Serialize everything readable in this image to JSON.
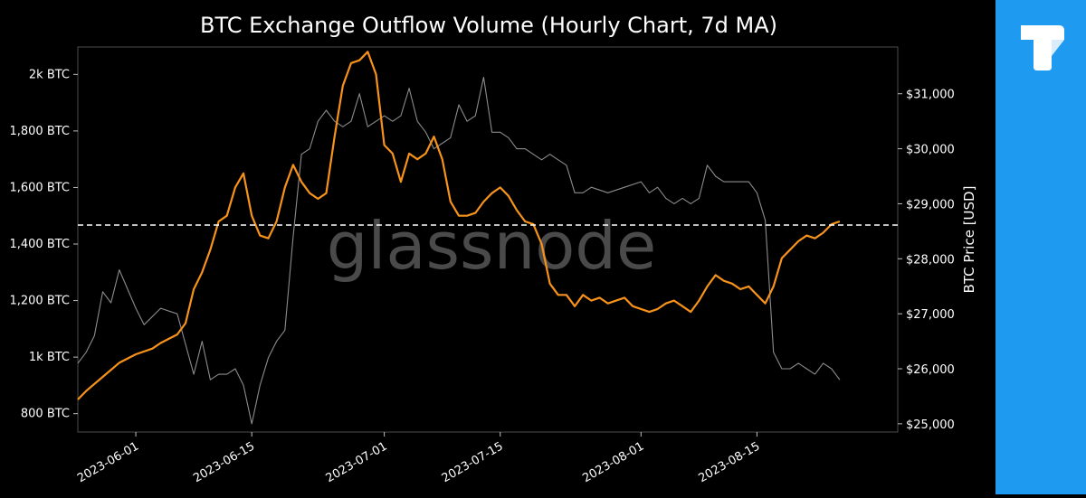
{
  "brand": {
    "logo_icon": "tradingview-t-icon",
    "panel_color": "#1e9bf0"
  },
  "watermark": "glassnode",
  "chart_data": {
    "type": "line",
    "title": "BTC Exchange Outflow Volume (Hourly Chart, 7d MA)",
    "xlabel": "",
    "ylabel_left": "",
    "ylabel_right": "BTC Price [USD]",
    "x_ticks": [
      "2023-06-01",
      "2023-06-15",
      "2023-07-01",
      "2023-07-15",
      "2023-08-01",
      "2023-08-15"
    ],
    "y_left_ticks": [
      {
        "value": 800,
        "label": "800 BTC"
      },
      {
        "value": 1000,
        "label": "1k BTC"
      },
      {
        "value": 1200,
        "label": "1,200 BTC"
      },
      {
        "value": 1400,
        "label": "1,400 BTC"
      },
      {
        "value": 1600,
        "label": "1,600 BTC"
      },
      {
        "value": 1800,
        "label": "1,800 BTC"
      },
      {
        "value": 2000,
        "label": "2k BTC"
      }
    ],
    "y_right_ticks": [
      {
        "value": 25000,
        "label": "$25,000"
      },
      {
        "value": 26000,
        "label": "$26,000"
      },
      {
        "value": 27000,
        "label": "$27,000"
      },
      {
        "value": 28000,
        "label": "$28,000"
      },
      {
        "value": 29000,
        "label": "$29,000"
      },
      {
        "value": 30000,
        "label": "$30,000"
      },
      {
        "value": 31000,
        "label": "$31,000"
      }
    ],
    "xlim": [
      "2023-05-25",
      "2023-09-01"
    ],
    "ylim_left": [
      735,
      2097
    ],
    "ylim_right": [
      24850,
      31850
    ],
    "grid": false,
    "reference_line": {
      "axis": "left",
      "value": 1467,
      "style": "dashed",
      "color": "#ffffff"
    },
    "series": [
      {
        "axis": "left",
        "color": "#f7931a",
        "x": [
          "2023-05-25",
          "2023-05-26",
          "2023-05-28",
          "2023-05-30",
          "2023-06-01",
          "2023-06-03",
          "2023-06-04",
          "2023-06-06",
          "2023-06-07",
          "2023-06-08",
          "2023-06-09",
          "2023-06-10",
          "2023-06-11",
          "2023-06-12",
          "2023-06-13",
          "2023-06-14",
          "2023-06-15",
          "2023-06-16",
          "2023-06-17",
          "2023-06-18",
          "2023-06-19",
          "2023-06-20",
          "2023-06-21",
          "2023-06-22",
          "2023-06-23",
          "2023-06-24",
          "2023-06-25",
          "2023-06-26",
          "2023-06-27",
          "2023-06-28",
          "2023-06-29",
          "2023-06-30",
          "2023-07-01",
          "2023-07-02",
          "2023-07-03",
          "2023-07-04",
          "2023-07-05",
          "2023-07-06",
          "2023-07-07",
          "2023-07-08",
          "2023-07-09",
          "2023-07-10",
          "2023-07-11",
          "2023-07-12",
          "2023-07-13",
          "2023-07-14",
          "2023-07-15",
          "2023-07-16",
          "2023-07-17",
          "2023-07-18",
          "2023-07-19",
          "2023-07-20",
          "2023-07-21",
          "2023-07-22",
          "2023-07-23",
          "2023-07-24",
          "2023-07-25",
          "2023-07-26",
          "2023-07-27",
          "2023-07-28",
          "2023-07-29",
          "2023-07-30",
          "2023-07-31",
          "2023-08-01",
          "2023-08-02",
          "2023-08-03",
          "2023-08-04",
          "2023-08-05",
          "2023-08-06",
          "2023-08-07",
          "2023-08-08",
          "2023-08-09",
          "2023-08-10",
          "2023-08-11",
          "2023-08-12",
          "2023-08-13",
          "2023-08-14",
          "2023-08-15",
          "2023-08-16",
          "2023-08-17",
          "2023-08-18",
          "2023-08-19",
          "2023-08-20",
          "2023-08-21",
          "2023-08-22",
          "2023-08-23",
          "2023-08-24",
          "2023-08-25"
        ],
        "values": [
          850,
          880,
          930,
          980,
          1010,
          1030,
          1050,
          1080,
          1120,
          1240,
          1300,
          1380,
          1480,
          1500,
          1600,
          1650,
          1500,
          1430,
          1420,
          1480,
          1600,
          1680,
          1620,
          1580,
          1560,
          1580,
          1780,
          1960,
          2040,
          2050,
          2080,
          2000,
          1750,
          1720,
          1620,
          1720,
          1700,
          1720,
          1780,
          1700,
          1550,
          1500,
          1500,
          1510,
          1550,
          1580,
          1600,
          1570,
          1520,
          1480,
          1470,
          1400,
          1260,
          1220,
          1220,
          1180,
          1220,
          1200,
          1210,
          1190,
          1200,
          1210,
          1180,
          1170,
          1160,
          1170,
          1190,
          1200,
          1180,
          1160,
          1200,
          1250,
          1290,
          1270,
          1260,
          1240,
          1250,
          1220,
          1190,
          1250,
          1350,
          1380,
          1410,
          1430,
          1420,
          1440,
          1470,
          1480
        ]
      },
      {
        "axis": "right",
        "color": "#8c8c8c",
        "x": [
          "2023-05-25",
          "2023-05-26",
          "2023-05-27",
          "2023-05-28",
          "2023-05-29",
          "2023-05-30",
          "2023-06-01",
          "2023-06-02",
          "2023-06-04",
          "2023-06-06",
          "2023-06-08",
          "2023-06-09",
          "2023-06-10",
          "2023-06-11",
          "2023-06-12",
          "2023-06-13",
          "2023-06-14",
          "2023-06-15",
          "2023-06-16",
          "2023-06-17",
          "2023-06-18",
          "2023-06-19",
          "2023-06-20",
          "2023-06-21",
          "2023-06-22",
          "2023-06-23",
          "2023-06-24",
          "2023-06-25",
          "2023-06-26",
          "2023-06-27",
          "2023-06-28",
          "2023-06-29",
          "2023-06-30",
          "2023-07-01",
          "2023-07-02",
          "2023-07-03",
          "2023-07-04",
          "2023-07-05",
          "2023-07-06",
          "2023-07-07",
          "2023-07-08",
          "2023-07-09",
          "2023-07-10",
          "2023-07-11",
          "2023-07-12",
          "2023-07-13",
          "2023-07-14",
          "2023-07-15",
          "2023-07-16",
          "2023-07-17",
          "2023-07-18",
          "2023-07-19",
          "2023-07-20",
          "2023-07-21",
          "2023-07-22",
          "2023-07-23",
          "2023-07-24",
          "2023-07-25",
          "2023-07-26",
          "2023-07-28",
          "2023-07-30",
          "2023-08-01",
          "2023-08-02",
          "2023-08-03",
          "2023-08-04",
          "2023-08-05",
          "2023-08-06",
          "2023-08-07",
          "2023-08-08",
          "2023-08-09",
          "2023-08-10",
          "2023-08-11",
          "2023-08-12",
          "2023-08-13",
          "2023-08-14",
          "2023-08-15",
          "2023-08-16",
          "2023-08-17",
          "2023-08-18",
          "2023-08-19",
          "2023-08-20",
          "2023-08-21",
          "2023-08-22",
          "2023-08-23",
          "2023-08-24",
          "2023-08-25"
        ],
        "values": [
          26100,
          26300,
          26600,
          27400,
          27200,
          27800,
          27100,
          26800,
          27100,
          27000,
          25900,
          26500,
          25800,
          25900,
          25900,
          26000,
          25700,
          25000,
          25700,
          26200,
          26500,
          26700,
          28400,
          29900,
          30000,
          30500,
          30700,
          30500,
          30400,
          30500,
          31000,
          30400,
          30500,
          30600,
          30500,
          30600,
          31100,
          30500,
          30300,
          30000,
          30100,
          30200,
          30800,
          30500,
          30600,
          31300,
          30300,
          30300,
          30200,
          30000,
          30000,
          29900,
          29800,
          29900,
          29800,
          29700,
          29200,
          29200,
          29300,
          29200,
          29300,
          29400,
          29200,
          29300,
          29100,
          29000,
          29100,
          29000,
          29100,
          29700,
          29500,
          29400,
          29400,
          29400,
          29400,
          29200,
          28700,
          26300,
          26000,
          26000,
          26100,
          26000,
          25900,
          26100,
          26000,
          25800
        ]
      }
    ]
  }
}
